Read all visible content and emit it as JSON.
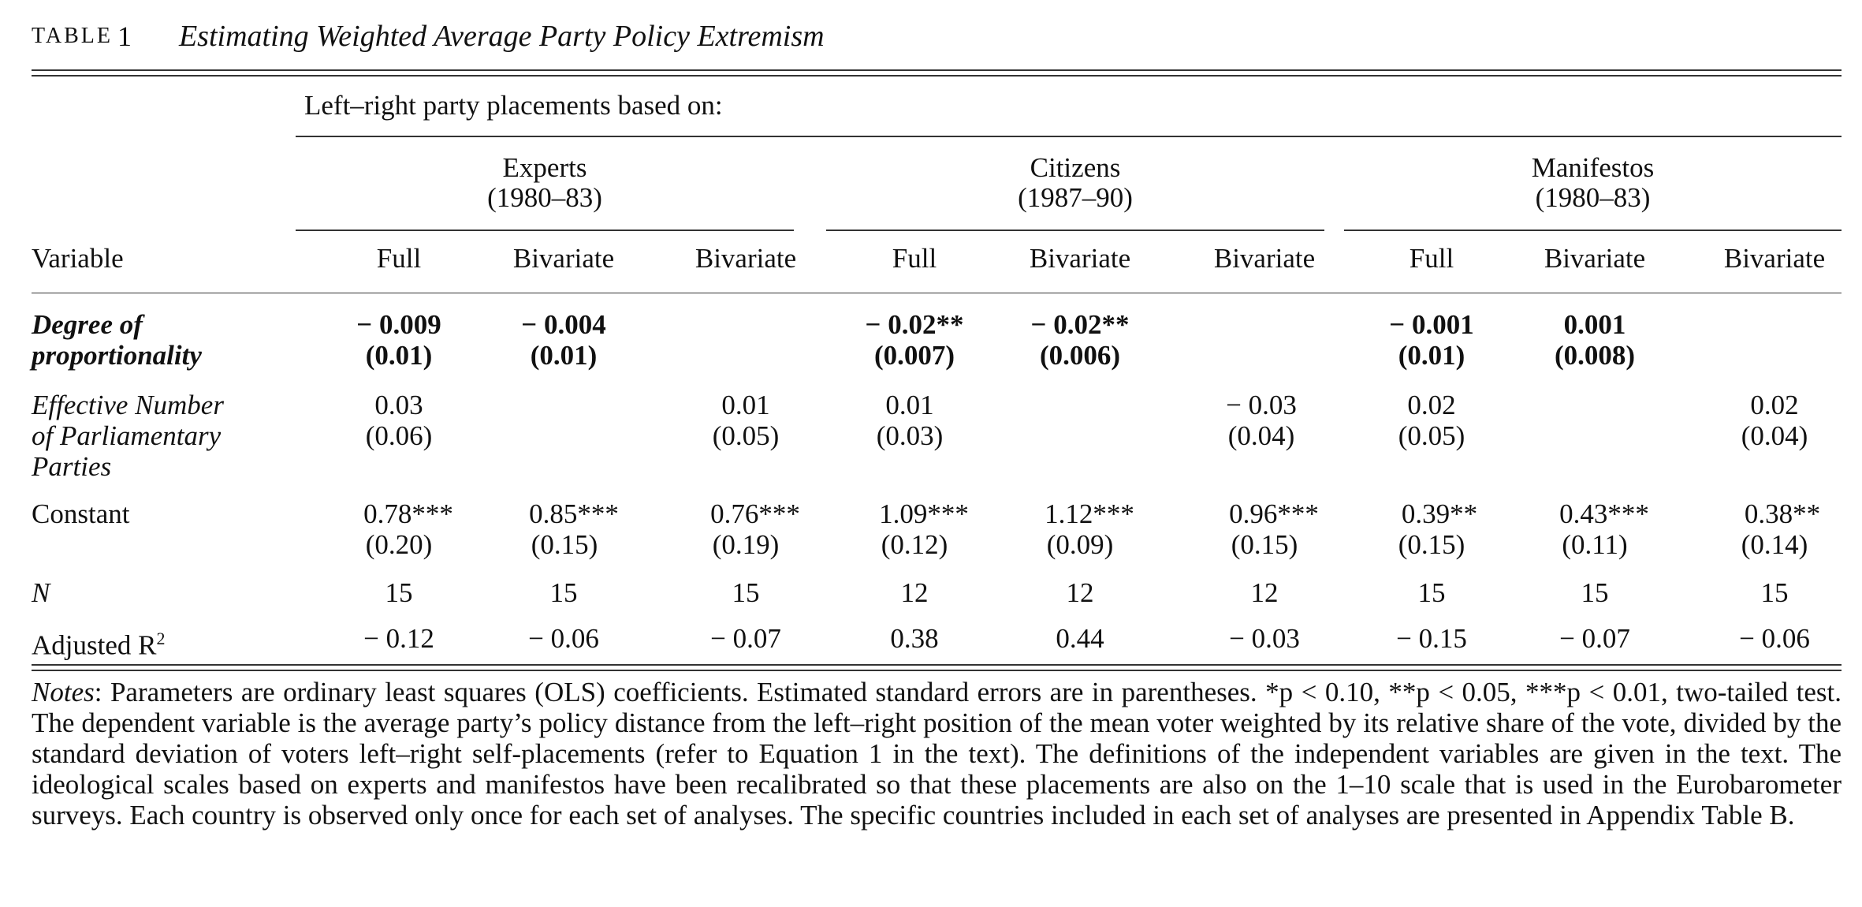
{
  "caption": {
    "label": "TABLE",
    "number": "1",
    "title": "Estimating Weighted Average Party Policy Extremism"
  },
  "spanner": "Left–right party placements based on:",
  "groups": [
    {
      "name": "Experts",
      "years": "(1980–83)"
    },
    {
      "name": "Citizens",
      "years": "(1987–90)"
    },
    {
      "name": "Manifestos",
      "years": "(1980–83)"
    }
  ],
  "columns": {
    "variable": "Variable",
    "labels": [
      "Full",
      "Bivariate",
      "Bivariate",
      "Full",
      "Bivariate",
      "Bivariate",
      "Full",
      "Bivariate",
      "Bivariate"
    ]
  },
  "rows": {
    "proportionality": {
      "label_line1": "Degree of",
      "label_line2": "proportionality",
      "coef": [
        "− 0.009",
        "− 0.004",
        "",
        "− 0.02**",
        "− 0.02**",
        "",
        "− 0.001",
        "0.001",
        ""
      ],
      "se": [
        "(0.01)",
        "(0.01)",
        "",
        "(0.007)",
        "(0.006)",
        "",
        "(0.01)",
        "(0.008)",
        ""
      ]
    },
    "enpp": {
      "label_line1": "Effective Number",
      "label_line2": "of Parliamentary",
      "label_line3": "Parties",
      "coef": [
        "0.03",
        "",
        "0.01",
        "0.01",
        "",
        "− 0.03",
        "0.02",
        "",
        "0.02"
      ],
      "se": [
        "(0.06)",
        "",
        "(0.05)",
        "(0.03)",
        "",
        "(0.04)",
        "(0.05)",
        "",
        "(0.04)"
      ]
    },
    "constant": {
      "label": "Constant",
      "coef": [
        "0.78***",
        "0.85***",
        "0.76***",
        "1.09***",
        "1.12***",
        "0.96***",
        "0.39**",
        "0.43***",
        "0.38**"
      ],
      "se": [
        "(0.20)",
        "(0.15)",
        "(0.19)",
        "(0.12)",
        "(0.09)",
        "(0.15)",
        "(0.15)",
        "(0.11)",
        "(0.14)"
      ]
    },
    "n": {
      "label": "N",
      "values": [
        "15",
        "15",
        "15",
        "12",
        "12",
        "12",
        "15",
        "15",
        "15"
      ]
    },
    "adjr2": {
      "label": "Adjusted R",
      "label_sup": "2",
      "values": [
        "− 0.12",
        "− 0.06",
        "− 0.07",
        "0.38",
        "0.44",
        "− 0.03",
        "− 0.15",
        "− 0.07",
        "− 0.06"
      ]
    }
  },
  "notes": {
    "label": "Notes",
    "text": ": Parameters are ordinary least squares (OLS) coefficients. Estimated standard errors are in parentheses. *p < 0.10, **p < 0.05, ***p < 0.01, two-tailed test. The dependent variable is the average party’s policy distance from the left–right position of the mean voter weighted by its relative share of the vote, divided by the standard deviation of voters left–right self-placements (refer to Equation 1 in the text). The definitions of the independent variables are given in the text. The ideological scales based on experts and manifestos have been recalibrated so that these placements are also on the 1–10 scale that is used in the Eurobarometer surveys. Each country is observed only once for each set of analyses. The specific countries included in each set of analyses are presented in Appendix Table B."
  }
}
